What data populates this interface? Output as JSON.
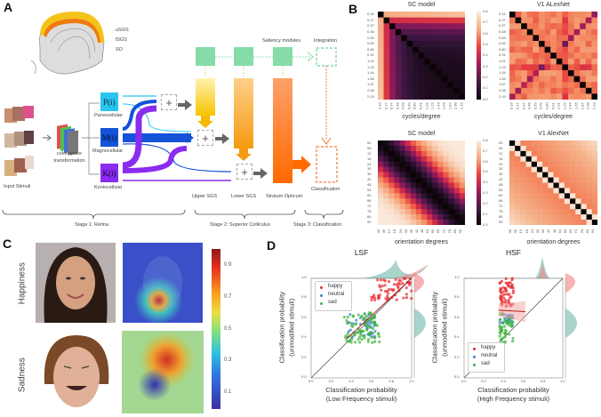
{
  "panels": {
    "a": "A",
    "b": "B",
    "c": "C",
    "d": "D"
  },
  "panel_a": {
    "brain_layers": [
      "uSGS",
      "lSGS",
      "SO"
    ],
    "saliency_label": "Saliency modules",
    "integration_label": "Integration",
    "input_label": "Input Stimuli",
    "transform_label": [
      "color space",
      "transformation"
    ],
    "channels": [
      {
        "symbol": "P(i)",
        "name": "Parvocellular",
        "color": "#29c5f0"
      },
      {
        "symbol": "M(i)",
        "name": "Magnocellular",
        "color": "#1452d8"
      },
      {
        "symbol": "K(i)",
        "name": "Koniocellular",
        "color": "#8a2cf0"
      }
    ],
    "plus": "+",
    "layers": [
      "Upper SGS",
      "Lower SGS",
      "Stratum Opticum"
    ],
    "classification_label": "Classification",
    "stages": [
      "Stage 1: Retina",
      "Stage 2: Superior Colliculus",
      "Stage 3: Classification"
    ]
  },
  "panel_b": {
    "titles": [
      "SC model",
      "V1 ALexNet",
      "SC model",
      "V1 AlexNet"
    ],
    "xlabels": [
      "cycles/degree",
      "cycles/degree",
      "orientation degrees",
      "orientation degrees"
    ],
    "freq_ticks": [
      "0.16",
      "0.27",
      "0.37",
      "0.48",
      "0.59",
      "0.69",
      "0.80",
      "0.91",
      "1.01",
      "1.23",
      "1.44",
      "1.65",
      "1.87",
      "2.08",
      "2.19"
    ],
    "orient_ticks": [
      "00",
      "06",
      "12",
      "18",
      "24",
      "30",
      "36",
      "42",
      "48",
      "54",
      "60",
      "66",
      "72",
      "78",
      "84",
      "90"
    ],
    "colorbar_ticks": [
      "0.8",
      "0.7",
      "0.6",
      "0.5",
      "0.4",
      "0.3",
      "0.2",
      "0.1",
      "0.0"
    ]
  },
  "panel_c": {
    "rows": [
      "Happiness",
      "Sadness"
    ],
    "colorbar_ticks": [
      "0.9",
      "0.7",
      "0.5",
      "0.3",
      "0.1"
    ]
  },
  "chart_data": [
    {
      "type": "scatter",
      "title": "LSF",
      "xlabel": [
        "Classification probability",
        "(Low Frequency stimuli)"
      ],
      "ylabel": [
        "Classification probability",
        "(unmodified stimuli)"
      ],
      "xlim": [
        0,
        1
      ],
      "ylim": [
        0,
        1
      ],
      "ticks": [
        "0.0",
        "0.2",
        "0.4",
        "0.6",
        "0.8",
        "1.0"
      ],
      "legend": "top-left",
      "series": [
        {
          "name": "happy",
          "color": "#e8262b",
          "x_range": [
            0.6,
            1.0
          ],
          "y_range": [
            0.78,
            1.0
          ],
          "n": 60
        },
        {
          "name": "neutral",
          "color": "#3b7fcf",
          "x_range": [
            0.35,
            0.65
          ],
          "y_range": [
            0.4,
            0.65
          ],
          "n": 40
        },
        {
          "name": "sad",
          "color": "#3cb33c",
          "x_range": [
            0.33,
            0.68
          ],
          "y_range": [
            0.35,
            0.66
          ],
          "n": 90
        }
      ],
      "regression": [
        [
          0.35,
          0.39
        ],
        [
          1.0,
          1.0
        ]
      ],
      "identity_line": true
    },
    {
      "type": "scatter",
      "title": "HSF",
      "xlabel": [
        "Classification probability",
        "(High Frequency stimuli)"
      ],
      "ylabel": [
        "Classification probability",
        "(unmodified stimuli)"
      ],
      "xlim": [
        0,
        1
      ],
      "ylim": [
        0,
        1
      ],
      "ticks": [
        "0.0",
        "0.2",
        "0.4",
        "0.6",
        "0.8",
        "1.0"
      ],
      "legend": "bottom-left",
      "series": [
        {
          "name": "happy",
          "color": "#e8262b",
          "x_range": [
            0.36,
            0.5
          ],
          "y_range": [
            0.72,
            1.0
          ],
          "n": 60
        },
        {
          "name": "neutral",
          "color": "#3b7fcf",
          "x_range": [
            0.36,
            0.5
          ],
          "y_range": [
            0.52,
            0.64
          ],
          "n": 25
        },
        {
          "name": "sad",
          "color": "#3cb33c",
          "x_range": [
            0.36,
            0.5
          ],
          "y_range": [
            0.35,
            0.66
          ],
          "n": 50
        }
      ],
      "regression": [
        [
          0.35,
          0.68
        ],
        [
          0.62,
          0.665
        ]
      ],
      "identity_line": true
    }
  ]
}
